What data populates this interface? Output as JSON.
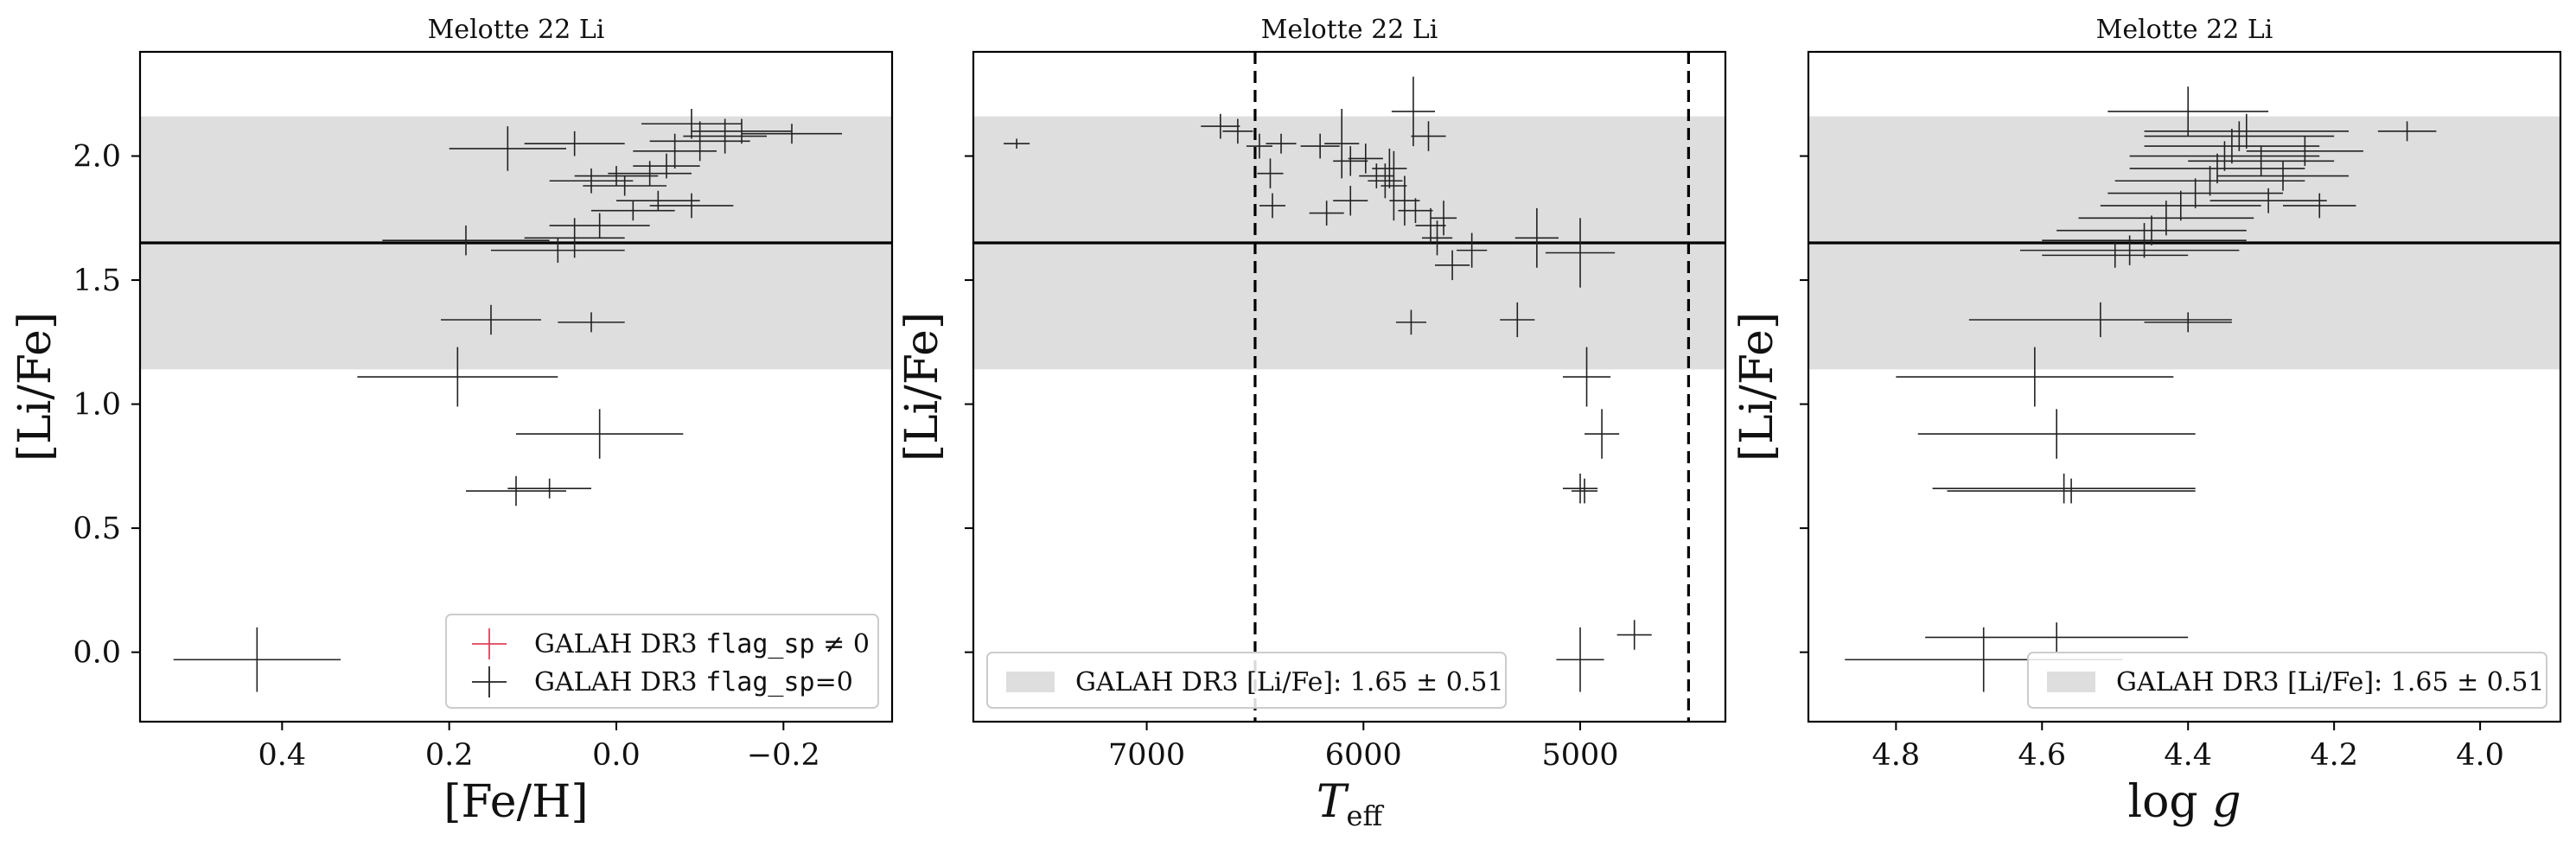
{
  "colors": {
    "band": "#dedede",
    "data": "#222222",
    "flagged": "#e0405a",
    "line": "#000000"
  },
  "chart_data": [
    {
      "type": "scatter",
      "title": "Melotte 22 Li",
      "xlabel": "[Fe/H]",
      "ylabel": "[Li/Fe]",
      "xlim": [
        0.57,
        -0.33
      ],
      "ylim": [
        -0.28,
        2.42
      ],
      "xticks": [
        0.4,
        0.2,
        0.0,
        -0.2
      ],
      "xtick_labels": [
        "0.4",
        "0.2",
        "0.0",
        "−0.2"
      ],
      "yticks": [
        0.0,
        0.5,
        1.0,
        1.5,
        2.0
      ],
      "ytick_labels": [
        "0.0",
        "0.5",
        "1.0",
        "1.5",
        "2.0"
      ],
      "show_ytick_labels": true,
      "band": {
        "center": 1.65,
        "low": 1.14,
        "high": 2.16
      },
      "hline": 1.65,
      "legend": {
        "placement": "lower-right",
        "entries": [
          {
            "marker": "flagged",
            "text": "GALAH DR3 ",
            "code": "flag_sp",
            "suffix": " ≠ 0"
          },
          {
            "marker": "data",
            "text": "GALAH DR3 ",
            "code": "flag_sp",
            "suffix": "=0"
          }
        ]
      },
      "series": [
        {
          "points": [
            {
              "x": 0.43,
              "y": -0.03,
              "xerr": 0.1,
              "yerr": 0.13
            },
            {
              "x": 0.19,
              "y": 1.11,
              "xerr": 0.12,
              "yerr": 0.12
            },
            {
              "x": 0.02,
              "y": 0.88,
              "xerr": 0.1,
              "yerr": 0.1
            },
            {
              "x": 0.12,
              "y": 0.65,
              "xerr": 0.06,
              "yerr": 0.06
            },
            {
              "x": 0.08,
              "y": 0.66,
              "xerr": 0.05,
              "yerr": 0.04
            },
            {
              "x": 0.15,
              "y": 1.34,
              "xerr": 0.06,
              "yerr": 0.06
            },
            {
              "x": 0.03,
              "y": 1.33,
              "xerr": 0.04,
              "yerr": 0.04
            },
            {
              "x": 0.18,
              "y": 1.66,
              "xerr": 0.1,
              "yerr": 0.06
            },
            {
              "x": 0.07,
              "y": 1.62,
              "xerr": 0.08,
              "yerr": 0.05
            },
            {
              "x": 0.05,
              "y": 1.67,
              "xerr": 0.06,
              "yerr": 0.08
            },
            {
              "x": 0.02,
              "y": 1.72,
              "xerr": 0.06,
              "yerr": 0.05
            },
            {
              "x": -0.02,
              "y": 1.78,
              "xerr": 0.05,
              "yerr": 0.04
            },
            {
              "x": -0.05,
              "y": 1.82,
              "xerr": 0.05,
              "yerr": 0.04
            },
            {
              "x": -0.01,
              "y": 1.88,
              "xerr": 0.05,
              "yerr": 0.04
            },
            {
              "x": 0.03,
              "y": 1.9,
              "xerr": 0.05,
              "yerr": 0.05
            },
            {
              "x": -0.04,
              "y": 1.93,
              "xerr": 0.05,
              "yerr": 0.05
            },
            {
              "x": -0.06,
              "y": 1.96,
              "xerr": 0.04,
              "yerr": 0.05
            },
            {
              "x": -0.09,
              "y": 1.8,
              "xerr": 0.05,
              "yerr": 0.05
            },
            {
              "x": 0.13,
              "y": 2.03,
              "xerr": 0.07,
              "yerr": 0.09
            },
            {
              "x": 0.05,
              "y": 2.05,
              "xerr": 0.06,
              "yerr": 0.05
            },
            {
              "x": -0.07,
              "y": 2.02,
              "xerr": 0.05,
              "yerr": 0.07
            },
            {
              "x": -0.1,
              "y": 2.06,
              "xerr": 0.06,
              "yerr": 0.08
            },
            {
              "x": -0.13,
              "y": 2.08,
              "xerr": 0.05,
              "yerr": 0.07
            },
            {
              "x": -0.15,
              "y": 2.1,
              "xerr": 0.06,
              "yerr": 0.05
            },
            {
              "x": -0.21,
              "y": 2.09,
              "xerr": 0.06,
              "yerr": 0.04
            },
            {
              "x": -0.09,
              "y": 2.13,
              "xerr": 0.06,
              "yerr": 0.06
            },
            {
              "x": 0.0,
              "y": 1.92,
              "xerr": 0.05,
              "yerr": 0.04
            }
          ]
        }
      ]
    },
    {
      "type": "scatter",
      "title": "Melotte 22 Li",
      "xlabel": "T_eff",
      "ylabel": "[Li/Fe]",
      "xlim": [
        7800,
        4330
      ],
      "ylim": [
        -0.28,
        2.42
      ],
      "xticks": [
        7000,
        6000,
        5000
      ],
      "xtick_labels": [
        "7000",
        "6000",
        "5000"
      ],
      "yticks": [
        0.0,
        0.5,
        1.0,
        1.5,
        2.0
      ],
      "ytick_labels": [
        "0.0",
        "0.5",
        "1.0",
        "1.5",
        "2.0"
      ],
      "show_ytick_labels": false,
      "band": {
        "center": 1.65,
        "low": 1.14,
        "high": 2.16
      },
      "hline": 1.65,
      "vlines": [
        6500,
        4500
      ],
      "legend": {
        "placement": "lower-left",
        "entries": [
          {
            "marker": "band",
            "text": "GALAH DR3 [Li/Fe]: 1.65 ± 0.51"
          }
        ]
      },
      "series": [
        {
          "points": [
            {
              "x": 7600,
              "y": 2.05,
              "xerr": 60,
              "yerr": 0.02
            },
            {
              "x": 6660,
              "y": 2.12,
              "xerr": 90,
              "yerr": 0.05
            },
            {
              "x": 6580,
              "y": 2.1,
              "xerr": 70,
              "yerr": 0.05
            },
            {
              "x": 6480,
              "y": 2.04,
              "xerr": 60,
              "yerr": 0.05
            },
            {
              "x": 6430,
              "y": 1.93,
              "xerr": 60,
              "yerr": 0.06
            },
            {
              "x": 6420,
              "y": 1.8,
              "xerr": 60,
              "yerr": 0.05
            },
            {
              "x": 6380,
              "y": 2.05,
              "xerr": 70,
              "yerr": 0.04
            },
            {
              "x": 6200,
              "y": 2.04,
              "xerr": 90,
              "yerr": 0.05
            },
            {
              "x": 6170,
              "y": 1.77,
              "xerr": 80,
              "yerr": 0.05
            },
            {
              "x": 6100,
              "y": 2.05,
              "xerr": 80,
              "yerr": 0.14
            },
            {
              "x": 6060,
              "y": 1.98,
              "xerr": 80,
              "yerr": 0.06
            },
            {
              "x": 6060,
              "y": 1.82,
              "xerr": 80,
              "yerr": 0.06
            },
            {
              "x": 5990,
              "y": 1.99,
              "xerr": 80,
              "yerr": 0.06
            },
            {
              "x": 5940,
              "y": 1.92,
              "xerr": 80,
              "yerr": 0.05
            },
            {
              "x": 5900,
              "y": 1.9,
              "xerr": 80,
              "yerr": 0.07
            },
            {
              "x": 5880,
              "y": 1.95,
              "xerr": 80,
              "yerr": 0.08
            },
            {
              "x": 5860,
              "y": 1.88,
              "xerr": 60,
              "yerr": 0.14
            },
            {
              "x": 5810,
              "y": 1.82,
              "xerr": 70,
              "yerr": 0.1
            },
            {
              "x": 5770,
              "y": 2.18,
              "xerr": 100,
              "yerr": 0.14
            },
            {
              "x": 5760,
              "y": 1.78,
              "xerr": 80,
              "yerr": 0.05
            },
            {
              "x": 5700,
              "y": 2.08,
              "xerr": 80,
              "yerr": 0.06
            },
            {
              "x": 5690,
              "y": 1.72,
              "xerr": 70,
              "yerr": 0.07
            },
            {
              "x": 5660,
              "y": 1.67,
              "xerr": 70,
              "yerr": 0.07
            },
            {
              "x": 5630,
              "y": 1.75,
              "xerr": 60,
              "yerr": 0.07
            },
            {
              "x": 5590,
              "y": 1.56,
              "xerr": 80,
              "yerr": 0.06
            },
            {
              "x": 5500,
              "y": 1.62,
              "xerr": 70,
              "yerr": 0.07
            },
            {
              "x": 5200,
              "y": 1.67,
              "xerr": 100,
              "yerr": 0.12
            },
            {
              "x": 5000,
              "y": 1.61,
              "xerr": 160,
              "yerr": 0.14
            },
            {
              "x": 5780,
              "y": 1.33,
              "xerr": 70,
              "yerr": 0.05
            },
            {
              "x": 5290,
              "y": 1.34,
              "xerr": 80,
              "yerr": 0.07
            },
            {
              "x": 4970,
              "y": 1.11,
              "xerr": 110,
              "yerr": 0.12
            },
            {
              "x": 4900,
              "y": 0.88,
              "xerr": 80,
              "yerr": 0.1
            },
            {
              "x": 5000,
              "y": 0.66,
              "xerr": 80,
              "yerr": 0.06
            },
            {
              "x": 4980,
              "y": 0.65,
              "xerr": 60,
              "yerr": 0.05
            },
            {
              "x": 5000,
              "y": -0.03,
              "xerr": 110,
              "yerr": 0.13
            },
            {
              "x": 4750,
              "y": 0.07,
              "xerr": 80,
              "yerr": 0.06
            }
          ]
        }
      ]
    },
    {
      "type": "scatter",
      "title": "Melotte 22 Li",
      "xlabel": "log g",
      "ylabel": "[Li/Fe]",
      "xlim": [
        4.92,
        3.89
      ],
      "ylim": [
        -0.28,
        2.42
      ],
      "xticks": [
        4.8,
        4.6,
        4.4,
        4.2,
        4.0
      ],
      "xtick_labels": [
        "4.8",
        "4.6",
        "4.4",
        "4.2",
        "4.0"
      ],
      "yticks": [
        0.0,
        0.5,
        1.0,
        1.5,
        2.0
      ],
      "ytick_labels": [
        "0.0",
        "0.5",
        "1.0",
        "1.5",
        "2.0"
      ],
      "show_ytick_labels": false,
      "band": {
        "center": 1.65,
        "low": 1.14,
        "high": 2.16
      },
      "hline": 1.65,
      "legend": {
        "placement": "lower-right",
        "entries": [
          {
            "marker": "band",
            "text": "GALAH DR3 [Li/Fe]: 1.65 ± 0.51"
          }
        ]
      },
      "series": [
        {
          "points": [
            {
              "x": 4.68,
              "y": -0.03,
              "xerr": 0.19,
              "yerr": 0.13
            },
            {
              "x": 4.58,
              "y": 0.06,
              "xerr": 0.18,
              "yerr": 0.06
            },
            {
              "x": 4.61,
              "y": 1.11,
              "xerr": 0.19,
              "yerr": 0.12
            },
            {
              "x": 4.58,
              "y": 0.88,
              "xerr": 0.19,
              "yerr": 0.1
            },
            {
              "x": 4.57,
              "y": 0.66,
              "xerr": 0.18,
              "yerr": 0.06
            },
            {
              "x": 4.56,
              "y": 0.65,
              "xerr": 0.17,
              "yerr": 0.05
            },
            {
              "x": 4.52,
              "y": 1.34,
              "xerr": 0.18,
              "yerr": 0.07
            },
            {
              "x": 4.4,
              "y": 1.33,
              "xerr": 0.06,
              "yerr": 0.04
            },
            {
              "x": 4.48,
              "y": 1.62,
              "xerr": 0.15,
              "yerr": 0.06
            },
            {
              "x": 4.46,
              "y": 1.66,
              "xerr": 0.14,
              "yerr": 0.07
            },
            {
              "x": 4.45,
              "y": 1.7,
              "xerr": 0.13,
              "yerr": 0.06
            },
            {
              "x": 4.43,
              "y": 1.75,
              "xerr": 0.12,
              "yerr": 0.07
            },
            {
              "x": 4.41,
              "y": 1.8,
              "xerr": 0.11,
              "yerr": 0.06
            },
            {
              "x": 4.39,
              "y": 1.85,
              "xerr": 0.12,
              "yerr": 0.06
            },
            {
              "x": 4.37,
              "y": 1.9,
              "xerr": 0.13,
              "yerr": 0.06
            },
            {
              "x": 4.36,
              "y": 1.95,
              "xerr": 0.12,
              "yerr": 0.06
            },
            {
              "x": 4.35,
              "y": 2.0,
              "xerr": 0.13,
              "yerr": 0.06
            },
            {
              "x": 4.34,
              "y": 2.04,
              "xerr": 0.12,
              "yerr": 0.07
            },
            {
              "x": 4.33,
              "y": 2.08,
              "xerr": 0.13,
              "yerr": 0.06
            },
            {
              "x": 4.32,
              "y": 2.1,
              "xerr": 0.14,
              "yerr": 0.07
            },
            {
              "x": 4.4,
              "y": 2.18,
              "xerr": 0.11,
              "yerr": 0.1
            },
            {
              "x": 4.29,
              "y": 1.82,
              "xerr": 0.08,
              "yerr": 0.05
            },
            {
              "x": 4.27,
              "y": 1.92,
              "xerr": 0.09,
              "yerr": 0.06
            },
            {
              "x": 4.24,
              "y": 2.02,
              "xerr": 0.08,
              "yerr": 0.06
            },
            {
              "x": 4.3,
              "y": 1.98,
              "xerr": 0.1,
              "yerr": 0.06
            },
            {
              "x": 4.22,
              "y": 1.8,
              "xerr": 0.05,
              "yerr": 0.05
            },
            {
              "x": 4.1,
              "y": 2.1,
              "xerr": 0.04,
              "yerr": 0.04
            },
            {
              "x": 4.5,
              "y": 1.6,
              "xerr": 0.1,
              "yerr": 0.05
            }
          ]
        }
      ]
    }
  ]
}
